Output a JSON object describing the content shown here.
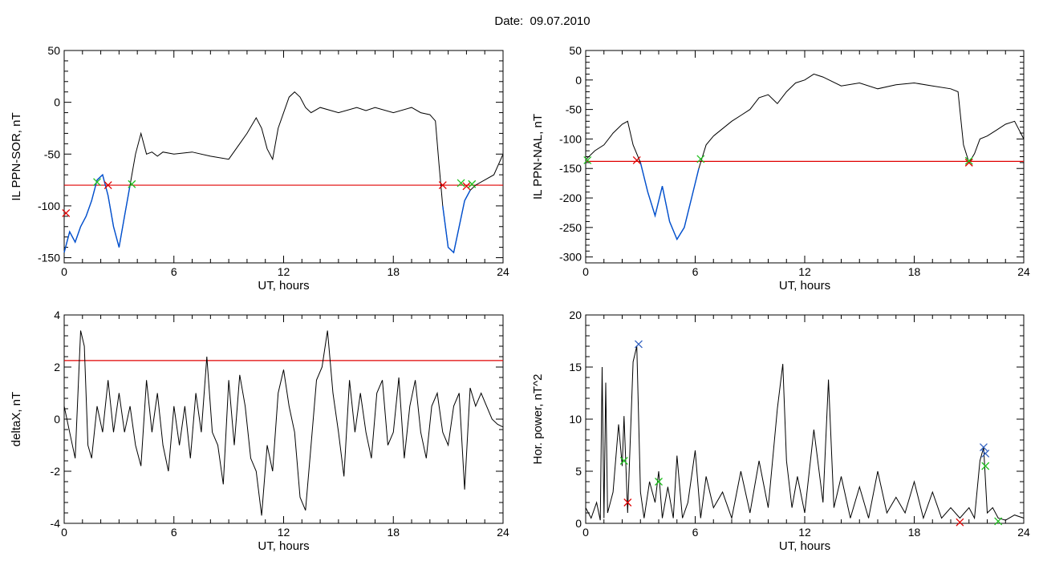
{
  "figure": {
    "title": "Date:  09.07.2010"
  },
  "colors": {
    "series": "#000000",
    "threshold": "#e00000",
    "highlight": "#0050d0",
    "marker_red": "#e00000",
    "marker_green": "#20c020",
    "marker_blue": "#3060c0"
  },
  "chart_data": [
    {
      "type": "line",
      "ylabel": "IL PPN-SOR, nT",
      "xlabel": "UT, hours",
      "xlim": [
        0,
        24
      ],
      "ylim": [
        -155,
        50
      ],
      "xticks": [
        0,
        6,
        12,
        18,
        24
      ],
      "yticks": [
        -150,
        -100,
        -50,
        0,
        50
      ],
      "threshold": -80,
      "series": [
        {
          "x": [
            0,
            0.3,
            0.6,
            0.9,
            1.2,
            1.5,
            1.8,
            2.1,
            2.4,
            2.7,
            3.0,
            3.3,
            3.6,
            3.9,
            4.2,
            4.5,
            4.8,
            5.1,
            5.4,
            6,
            7,
            8,
            9,
            9.6,
            10,
            10.5,
            10.8,
            11.1,
            11.4,
            11.7,
            12,
            12.3,
            12.6,
            12.9,
            13.2,
            13.5,
            14,
            15,
            16,
            16.5,
            17,
            18,
            19,
            19.5,
            20,
            20.3,
            20.5,
            20.7,
            21.0,
            21.3,
            21.6,
            21.9,
            22.2,
            22.5,
            23,
            23.5,
            24
          ],
          "y": [
            -145,
            -125,
            -135,
            -120,
            -110,
            -95,
            -75,
            -70,
            -90,
            -120,
            -140,
            -110,
            -80,
            -50,
            -30,
            -50,
            -48,
            -52,
            -48,
            -50,
            -48,
            -52,
            -55,
            -40,
            -30,
            -15,
            -25,
            -45,
            -55,
            -25,
            -10,
            5,
            10,
            5,
            -5,
            -10,
            -5,
            -10,
            -5,
            -8,
            -5,
            -10,
            -5,
            -10,
            -12,
            -18,
            -60,
            -100,
            -140,
            -145,
            -120,
            -95,
            -85,
            -80,
            -75,
            -70,
            -50
          ]
        }
      ],
      "highlight_ranges": [
        [
          0,
          3.8
        ],
        [
          20.7,
          22.4
        ]
      ],
      "markers": [
        {
          "x": 0.1,
          "y": -107,
          "color": "red"
        },
        {
          "x": 1.8,
          "y": -77,
          "color": "green"
        },
        {
          "x": 2.4,
          "y": -80,
          "color": "red"
        },
        {
          "x": 3.7,
          "y": -79,
          "color": "green"
        },
        {
          "x": 20.7,
          "y": -80,
          "color": "red"
        },
        {
          "x": 21.7,
          "y": -78,
          "color": "green"
        },
        {
          "x": 22.0,
          "y": -81,
          "color": "red"
        },
        {
          "x": 22.3,
          "y": -79,
          "color": "green"
        }
      ]
    },
    {
      "type": "line",
      "ylabel": "IL PPN-NAL, nT",
      "xlabel": "UT, hours",
      "xlim": [
        0,
        24
      ],
      "ylim": [
        -310,
        50
      ],
      "xticks": [
        0,
        6,
        12,
        18,
        24
      ],
      "yticks": [
        -300,
        -250,
        -200,
        -150,
        -100,
        -50,
        0,
        50
      ],
      "threshold": -138,
      "series": [
        {
          "x": [
            0,
            0.5,
            1,
            1.5,
            2,
            2.3,
            2.6,
            3,
            3.4,
            3.8,
            4.2,
            4.6,
            5,
            5.4,
            5.8,
            6.2,
            6.6,
            7,
            8,
            8.5,
            9,
            9.5,
            10,
            10.5,
            11,
            11.5,
            12,
            12.5,
            13,
            14,
            15,
            16,
            17,
            18,
            19,
            20,
            20.4,
            20.7,
            21,
            21.3,
            21.6,
            22,
            22.5,
            23,
            23.5,
            24
          ],
          "y": [
            -135,
            -120,
            -110,
            -90,
            -75,
            -70,
            -110,
            -140,
            -190,
            -230,
            -180,
            -240,
            -270,
            -250,
            -200,
            -150,
            -110,
            -95,
            -70,
            -60,
            -50,
            -30,
            -25,
            -40,
            -20,
            -5,
            0,
            10,
            5,
            -10,
            -5,
            -15,
            -8,
            -5,
            -10,
            -15,
            -20,
            -110,
            -140,
            -125,
            -100,
            -95,
            -85,
            -75,
            -70,
            -100
          ]
        }
      ],
      "highlight_ranges": [
        [
          2.8,
          6.3
        ]
      ],
      "markers": [
        {
          "x": 0.1,
          "y": -136,
          "color": "green"
        },
        {
          "x": 2.8,
          "y": -136,
          "color": "red"
        },
        {
          "x": 6.3,
          "y": -134,
          "color": "green"
        },
        {
          "x": 21.0,
          "y": -140,
          "color": "red"
        },
        {
          "x": 21.0,
          "y": -137,
          "color": "green"
        }
      ]
    },
    {
      "type": "line",
      "ylabel": "deltaX, nT",
      "xlabel": "UT, hours",
      "xlim": [
        0,
        24
      ],
      "ylim": [
        -4,
        4
      ],
      "xticks": [
        0,
        6,
        12,
        18,
        24
      ],
      "yticks": [
        -4,
        -2,
        0,
        2,
        4
      ],
      "threshold": 2.25,
      "series": [
        {
          "x": [
            0,
            0.3,
            0.6,
            0.9,
            1.1,
            1.3,
            1.5,
            1.8,
            2.1,
            2.4,
            2.7,
            3.0,
            3.3,
            3.6,
            3.9,
            4.2,
            4.5,
            4.8,
            5.1,
            5.4,
            5.7,
            6.0,
            6.3,
            6.6,
            6.9,
            7.2,
            7.5,
            7.8,
            8.1,
            8.4,
            8.7,
            9.0,
            9.3,
            9.6,
            9.9,
            10.2,
            10.5,
            10.8,
            11.1,
            11.4,
            11.7,
            12.0,
            12.3,
            12.6,
            12.9,
            13.2,
            13.5,
            13.8,
            14.1,
            14.4,
            14.7,
            15.0,
            15.3,
            15.6,
            15.9,
            16.2,
            16.5,
            16.8,
            17.1,
            17.4,
            17.7,
            18.0,
            18.3,
            18.6,
            18.9,
            19.2,
            19.5,
            19.8,
            20.1,
            20.4,
            20.7,
            21.0,
            21.3,
            21.6,
            21.9,
            22.2,
            22.5,
            22.8,
            23.1,
            23.4,
            23.7,
            24.0
          ],
          "y": [
            0.5,
            -0.5,
            -1.5,
            3.4,
            2.8,
            -1.0,
            -1.5,
            0.5,
            -0.5,
            1.5,
            -0.5,
            1.0,
            -0.5,
            0.5,
            -1.0,
            -1.8,
            1.5,
            -0.5,
            1.0,
            -1.0,
            -2.0,
            0.5,
            -1.0,
            0.5,
            -1.5,
            1.0,
            -0.5,
            2.4,
            -0.5,
            -1.0,
            -2.5,
            1.5,
            -1.0,
            1.7,
            0.5,
            -1.5,
            -2.0,
            -3.7,
            -1.0,
            -2.0,
            1.0,
            1.9,
            0.5,
            -0.5,
            -3.0,
            -3.5,
            -1.0,
            1.5,
            2.0,
            3.4,
            1.0,
            -0.5,
            -2.2,
            1.5,
            -0.5,
            1.0,
            -0.5,
            -1.5,
            1.0,
            1.5,
            -1.0,
            -0.5,
            1.6,
            -1.5,
            0.5,
            1.5,
            -0.5,
            -1.5,
            0.5,
            1.0,
            -0.5,
            -1.0,
            0.5,
            1.0,
            -2.7,
            1.2,
            0.5,
            1.0,
            0.5,
            0.0,
            -0.2,
            -0.3
          ]
        }
      ],
      "highlight_ranges": [],
      "markers": []
    },
    {
      "type": "line",
      "ylabel": "Hor. power, nT^2",
      "xlabel": "UT, hours",
      "xlim": [
        0,
        24
      ],
      "ylim": [
        0,
        20
      ],
      "xticks": [
        0,
        6,
        12,
        18,
        24
      ],
      "yticks": [
        0,
        5,
        10,
        15,
        20
      ],
      "threshold": null,
      "series": [
        {
          "x": [
            0,
            0.3,
            0.6,
            0.8,
            0.9,
            1.0,
            1.1,
            1.2,
            1.5,
            1.8,
            2.0,
            2.1,
            2.3,
            2.6,
            2.8,
            3.0,
            3.2,
            3.5,
            3.8,
            4.0,
            4.2,
            4.5,
            4.8,
            5.0,
            5.3,
            5.6,
            6.0,
            6.3,
            6.6,
            7.0,
            7.5,
            8.0,
            8.5,
            9.0,
            9.5,
            10.0,
            10.5,
            10.8,
            11.0,
            11.3,
            11.6,
            12.0,
            12.5,
            13.0,
            13.3,
            13.6,
            14.0,
            14.5,
            15.0,
            15.5,
            16.0,
            16.5,
            17.0,
            17.5,
            18.0,
            18.5,
            19.0,
            19.5,
            20.0,
            20.5,
            21.0,
            21.3,
            21.6,
            21.8,
            22.0,
            22.3,
            22.6,
            23.0,
            23.5,
            24.0
          ],
          "y": [
            1.5,
            0.5,
            2.0,
            0.3,
            15,
            0.5,
            13.5,
            1.0,
            3.0,
            9.5,
            5.5,
            10.3,
            1.0,
            15.5,
            17,
            3.0,
            0.5,
            4.0,
            2.0,
            5.0,
            0.5,
            3.5,
            0.5,
            6.5,
            0.5,
            2.0,
            7.0,
            0.5,
            4.5,
            1.5,
            3.0,
            0.5,
            5.0,
            1.0,
            6.0,
            1.5,
            11.0,
            15.3,
            6.0,
            1.5,
            4.5,
            1.0,
            9.0,
            2.0,
            13.8,
            1.5,
            4.5,
            0.5,
            3.5,
            0.5,
            5.0,
            1.0,
            2.5,
            1.0,
            4.0,
            0.5,
            3.0,
            0.5,
            1.5,
            0.5,
            1.5,
            0.5,
            6.0,
            7.3,
            1.0,
            1.5,
            0.5,
            0.3,
            0.8,
            0.5
          ]
        }
      ],
      "highlight_ranges": [],
      "markers": [
        {
          "x": 2.9,
          "y": 17.2,
          "color": "blue"
        },
        {
          "x": 2.1,
          "y": 6.0,
          "color": "green"
        },
        {
          "x": 2.3,
          "y": 2.0,
          "color": "red"
        },
        {
          "x": 4.0,
          "y": 4.0,
          "color": "green"
        },
        {
          "x": 21.8,
          "y": 7.3,
          "color": "blue"
        },
        {
          "x": 21.9,
          "y": 6.7,
          "color": "blue"
        },
        {
          "x": 21.9,
          "y": 5.5,
          "color": "green"
        },
        {
          "x": 20.5,
          "y": 0.1,
          "color": "red"
        },
        {
          "x": 22.6,
          "y": 0.2,
          "color": "green"
        }
      ]
    }
  ]
}
